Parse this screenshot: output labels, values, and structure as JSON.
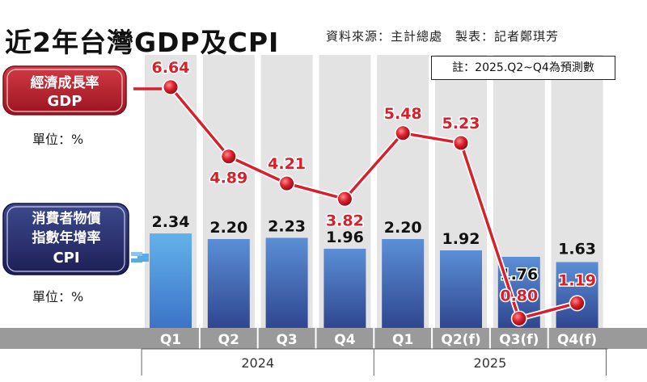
{
  "title": "近2年台灣GDP及CPI",
  "source": "資料來源：主計總處　製表：記者鄭琪芳",
  "note": "註：2025.Q2~Q4為預測數",
  "gdp_legend": {
    "line1": "經濟成長率",
    "line2": "GDP",
    "unit": "單位：%"
  },
  "cpi_legend": {
    "line1": "消費者物價",
    "line2": "指數年增率",
    "line3": "CPI",
    "unit": "單位：%"
  },
  "colors": {
    "gdp_line": "#d8202c",
    "gdp_marker": "#c8102e",
    "gdp_label": "#d8202c",
    "cpi_bar_2024_top": "#5aaae3",
    "cpi_bar_bottom": "#2f4690",
    "column_band": "#e3e3e3",
    "axis_band": "#9a9a9a",
    "gdp_legend_bg": "#b81e2c",
    "cpi_legend_bg": "#2c2f6e"
  },
  "chart_data": {
    "type": "bar",
    "categories": [
      "Q1",
      "Q2",
      "Q3",
      "Q4",
      "Q1",
      "Q2(f)",
      "Q3(f)",
      "Q4(f)"
    ],
    "groups": [
      {
        "label": "2024",
        "categories": [
          "Q1",
          "Q2",
          "Q3",
          "Q4"
        ]
      },
      {
        "label": "2025",
        "categories": [
          "Q1",
          "Q2(f)",
          "Q3(f)",
          "Q4(f)"
        ]
      }
    ],
    "series": [
      {
        "name": "CPI",
        "type": "bar",
        "values": [
          2.34,
          2.2,
          2.23,
          1.96,
          2.2,
          1.92,
          1.76,
          1.63
        ]
      },
      {
        "name": "GDP",
        "type": "line",
        "values": [
          6.64,
          4.89,
          4.21,
          3.82,
          5.48,
          5.23,
          0.8,
          1.19
        ]
      }
    ],
    "data_labels": true,
    "grid": false
  }
}
